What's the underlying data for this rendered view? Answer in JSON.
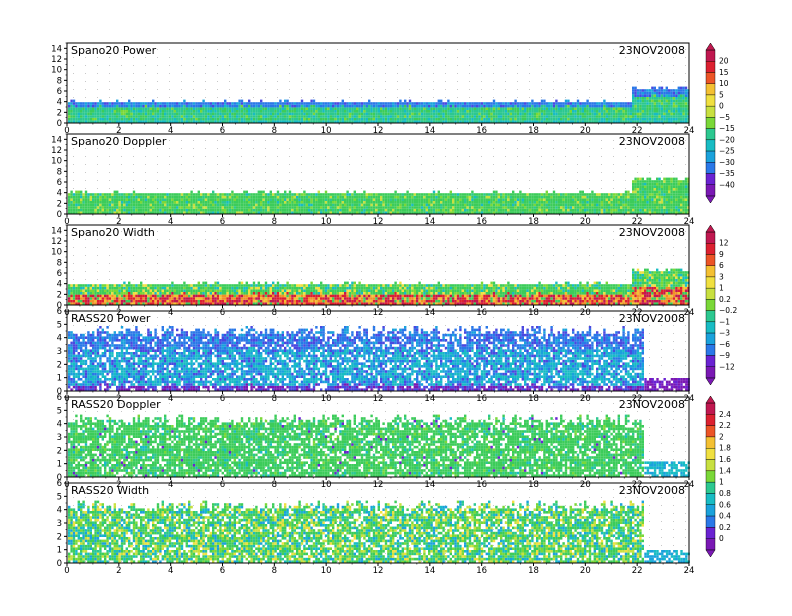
{
  "colors": {
    "palette": [
      "#7a18b4",
      "#6a22d2",
      "#4a48e0",
      "#2a78e8",
      "#1aa2dc",
      "#18bcc4",
      "#2cc890",
      "#3ccc5a",
      "#7ad838",
      "#c8e040",
      "#f0e040",
      "#f4c032",
      "#f09028",
      "#ec5426",
      "#dc2030",
      "#c01850"
    ],
    "frame": "#000000",
    "dots": "#c8c8c8"
  },
  "chart_data": [
    {
      "type": "heatmap",
      "title": "Spano20  Power",
      "date": "23NOV2008",
      "x_ticks": [
        "0",
        "2",
        "4",
        "6",
        "8",
        "10",
        "12",
        "14",
        "16",
        "18",
        "20",
        "22",
        "24"
      ],
      "y_ticks": [
        "0",
        "2",
        "4",
        "6",
        "8",
        "10",
        "12",
        "14"
      ],
      "xlim": [
        0,
        24
      ],
      "ylim": [
        0,
        15
      ],
      "colorbar_group": 0,
      "echo_top_km": 4.2,
      "echo_top_late_km": 6.8,
      "data_end_hour": 24
    },
    {
      "type": "heatmap",
      "title": "Spano20  Doppler",
      "date": "23NOV2008",
      "x_ticks": [
        "0",
        "2",
        "4",
        "6",
        "8",
        "10",
        "12",
        "14",
        "16",
        "18",
        "20",
        "22",
        "24"
      ],
      "y_ticks": [
        "0",
        "2",
        "4",
        "6",
        "8",
        "10",
        "12",
        "14"
      ],
      "xlim": [
        0,
        24
      ],
      "ylim": [
        0,
        15
      ],
      "colorbar_group": 0,
      "echo_top_km": 4.2,
      "echo_top_late_km": 6.8,
      "data_end_hour": 24
    },
    {
      "type": "heatmap",
      "title": "Spano20  Width",
      "date": "23NOV2008",
      "x_ticks": [
        "0",
        "2",
        "4",
        "6",
        "8",
        "10",
        "12",
        "14",
        "16",
        "18",
        "20",
        "22",
        "24"
      ],
      "y_ticks": [
        "0",
        "2",
        "4",
        "6",
        "8",
        "10",
        "12",
        "14"
      ],
      "xlim": [
        0,
        24
      ],
      "ylim": [
        0,
        15
      ],
      "colorbar_group": 1,
      "echo_top_km": 4.2,
      "echo_top_late_km": 6.8,
      "data_end_hour": 24
    },
    {
      "type": "heatmap",
      "title": "RASS20  Power",
      "date": "23NOV2008",
      "x_ticks": [
        "0",
        "2",
        "4",
        "6",
        "8",
        "10",
        "12",
        "14",
        "16",
        "18",
        "20",
        "22",
        "24"
      ],
      "y_ticks": [
        "0",
        "1",
        "2",
        "3",
        "4",
        "5",
        "6"
      ],
      "xlim": [
        0,
        24
      ],
      "ylim": [
        0,
        6
      ],
      "colorbar_group": 1,
      "echo_top_km": 4.6,
      "echo_top_late_km": 1.0,
      "data_end_hour": 22.2
    },
    {
      "type": "heatmap",
      "title": "RASS20  Doppler",
      "date": "23NOV2008",
      "x_ticks": [
        "0",
        "2",
        "4",
        "6",
        "8",
        "10",
        "12",
        "14",
        "16",
        "18",
        "20",
        "22",
        "24"
      ],
      "y_ticks": [
        "0",
        "1",
        "2",
        "3",
        "4",
        "5",
        "6"
      ],
      "xlim": [
        0,
        24
      ],
      "ylim": [
        0,
        6
      ],
      "colorbar_group": 2,
      "echo_top_km": 4.4,
      "echo_top_late_km": 1.2,
      "data_end_hour": 22.2
    },
    {
      "type": "heatmap",
      "title": "RASS20  Width",
      "date": "23NOV2008",
      "x_ticks": [
        "0",
        "2",
        "4",
        "6",
        "8",
        "10",
        "12",
        "14",
        "16",
        "18",
        "20",
        "22",
        "24"
      ],
      "y_ticks": [
        "0",
        "1",
        "2",
        "3",
        "4",
        "5",
        "6"
      ],
      "xlim": [
        0,
        24
      ],
      "ylim": [
        0,
        6
      ],
      "colorbar_group": 2,
      "echo_top_km": 4.4,
      "echo_top_late_km": 1.0,
      "data_end_hour": 22.2
    }
  ],
  "colorbars": [
    {
      "labels": [
        "20",
        "15",
        "10",
        "5",
        "0",
        "−5",
        "−15",
        "−20",
        "−25",
        "−30",
        "−35",
        "−40"
      ]
    },
    {
      "labels": [
        "12",
        "9",
        "6",
        "3",
        "1",
        "0.2",
        "−0.2",
        "−1",
        "−3",
        "−6",
        "−9",
        "−12"
      ]
    },
    {
      "labels": [
        "2.4",
        "2.2",
        "2",
        "1.8",
        "1.6",
        "1.4",
        "1",
        "0.8",
        "0.6",
        "0.4",
        "0.2",
        "0"
      ]
    }
  ]
}
